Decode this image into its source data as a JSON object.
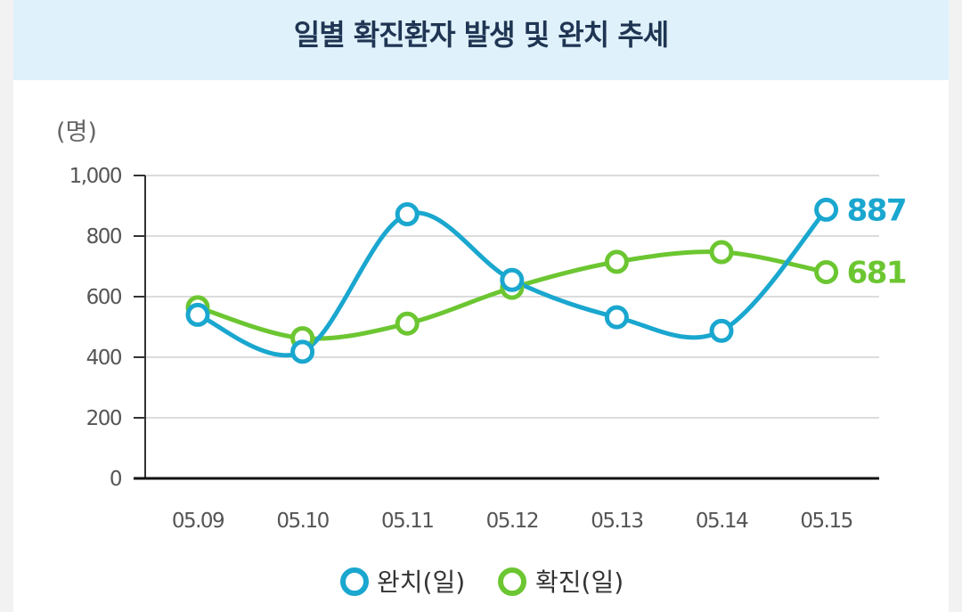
{
  "title": "일별 확진환자 발생 및 완치 추세",
  "chart_data": {
    "type": "line",
    "title": "일별 확진환자 발생 및 완치 추세",
    "ylabel": "(명)",
    "xlabel": "",
    "ylim": [
      0,
      1000
    ],
    "yticks": [
      0,
      200,
      400,
      600,
      800,
      1000
    ],
    "ytick_labels": [
      "0",
      "200",
      "400",
      "600",
      "800",
      "1,000"
    ],
    "categories": [
      "05.09",
      "05.10",
      "05.11",
      "05.12",
      "05.13",
      "05.14",
      "05.15"
    ],
    "series": [
      {
        "name": "완치(일)",
        "color": "#1aa7cf",
        "values": [
          540,
          418,
          872,
          655,
          532,
          487,
          887
        ],
        "end_label": "887"
      },
      {
        "name": "확진(일)",
        "color": "#6cc631",
        "values": [
          565,
          463,
          511,
          629,
          715,
          747,
          681
        ],
        "end_label": "681"
      }
    ],
    "legend": "bottom-center",
    "grid": true
  }
}
